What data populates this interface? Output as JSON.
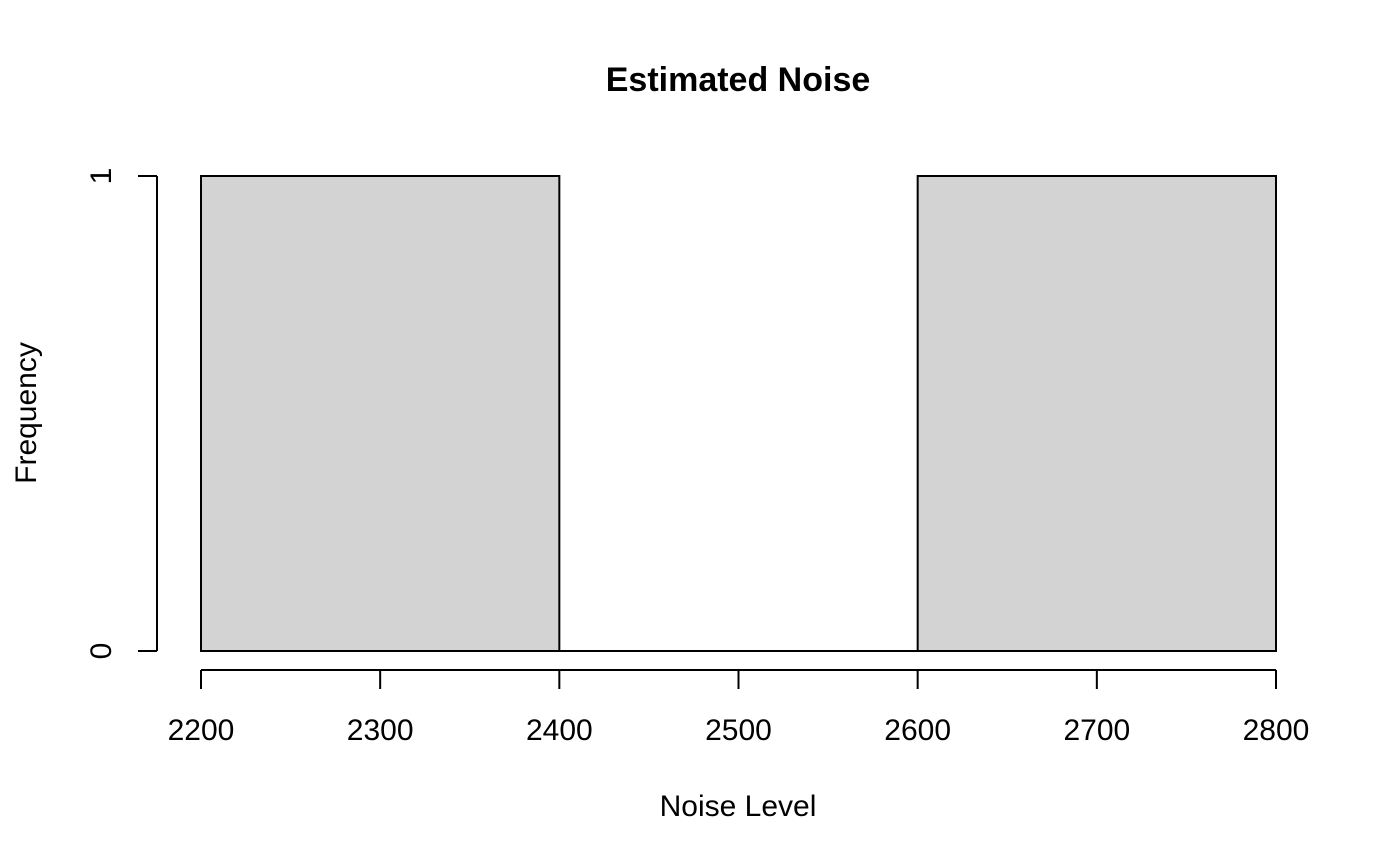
{
  "chart_data": {
    "type": "bar",
    "subtype": "histogram",
    "title": "Estimated Noise",
    "xlabel": "Noise Level",
    "ylabel": "Frequency",
    "bins": [
      {
        "start": 2200,
        "end": 2400,
        "count": 1
      },
      {
        "start": 2400,
        "end": 2600,
        "count": 0
      },
      {
        "start": 2600,
        "end": 2800,
        "count": 1
      }
    ],
    "xlim": [
      2200,
      2800
    ],
    "ylim": [
      0,
      1
    ],
    "x_ticks": [
      2200,
      2300,
      2400,
      2500,
      2600,
      2700,
      2800
    ],
    "x_tick_labels": [
      "2200",
      "2300",
      "2400",
      "2500",
      "2600",
      "2700",
      "2800"
    ],
    "y_ticks": [
      0,
      1
    ],
    "y_tick_labels": [
      "0",
      "1"
    ],
    "grid": false,
    "legend": "none",
    "colors": {
      "bar_fill": "#d3d3d3",
      "bar_stroke": "#000000",
      "background": "#ffffff"
    }
  }
}
